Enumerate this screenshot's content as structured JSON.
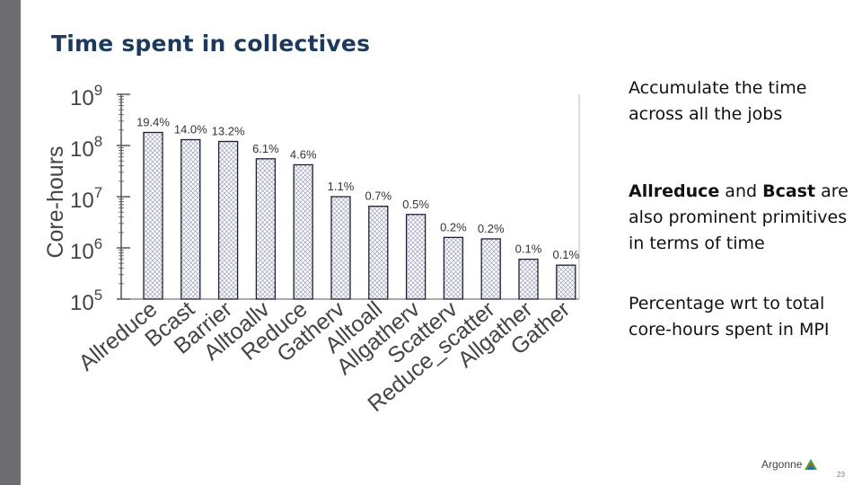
{
  "slide": {
    "title": "Time spent in collectives",
    "page_number": "23",
    "logo_text": "Argonne"
  },
  "notes": {
    "note1": "Accumulate the time across all the jobs",
    "note2_part1": "Allreduce",
    "note2_part2": " and ",
    "note2_part3": "Bcast",
    "note2_part4": " are also prominent primitives in terms of time",
    "note3": "Percentage wrt to total core-hours spent in MPI"
  },
  "chart_data": {
    "type": "bar",
    "ylabel": "Core-hours",
    "yscale": "log",
    "ylim": [
      100000,
      1000000000
    ],
    "yticks": [
      {
        "value": 1000000000,
        "base": "10",
        "exp": "9"
      },
      {
        "value": 100000000,
        "base": "10",
        "exp": "8"
      },
      {
        "value": 10000000,
        "base": "10",
        "exp": "7"
      },
      {
        "value": 1000000,
        "base": "10",
        "exp": "6"
      },
      {
        "value": 100000,
        "base": "10",
        "exp": "5"
      }
    ],
    "categories": [
      "Allreduce",
      "Bcast",
      "Barrier",
      "Alltoallv",
      "Reduce",
      "Gatherv",
      "Alltoall",
      "Allgatherv",
      "Scatterv",
      "Reduce_scatter",
      "Allgather",
      "Gather"
    ],
    "values": [
      180000000,
      130000000,
      120000000,
      55000000,
      42000000,
      10000000,
      6500000,
      4500000,
      1600000,
      1500000,
      600000,
      460000
    ],
    "labels": [
      "19.4%",
      "14.0%",
      "13.2%",
      "6.1%",
      "4.6%",
      "1.1%",
      "0.7%",
      "0.5%",
      "0.2%",
      "0.2%",
      "0.1%",
      "0.1%"
    ],
    "bar_fill": "crosshatch",
    "colors": {
      "bar_stroke": "#1f1f3a",
      "hatch": "#9aa0b8",
      "axis": "#555555",
      "text": "#444444"
    }
  }
}
